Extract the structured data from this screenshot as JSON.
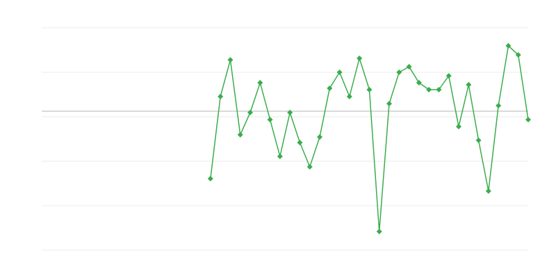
{
  "chart_data": {
    "type": "line",
    "x": [
      17,
      18,
      19,
      20,
      21,
      22,
      23,
      24,
      25,
      26,
      27,
      28,
      29,
      30,
      31,
      32,
      33,
      34,
      35,
      36,
      37,
      38,
      39,
      40,
      41,
      42,
      43,
      44,
      45,
      46,
      47,
      48,
      49
    ],
    "series": [
      {
        "color": "#3aad4c",
        "values": [
          -30.3,
          6.6,
          23.1,
          -10.6,
          -0.6,
          12.8,
          -3.8,
          -20.3,
          -0.6,
          -14.1,
          -25,
          -11.6,
          10.3,
          17.5,
          6.6,
          23.8,
          9.7,
          -54.1,
          3.4,
          17.5,
          20,
          12.8,
          9.7,
          9.7,
          15.9,
          -6.9,
          11.9,
          -13.1,
          -35.9,
          2.5,
          29.4,
          25.3,
          -3.8
        ]
      }
    ],
    "xlim": [
      0,
      49
    ],
    "ylim": [
      -62.5,
      37.5
    ],
    "yticks": [
      -62.5,
      -42.5,
      -22.5,
      -2.5,
      17.5,
      37.5
    ],
    "baseline": 0,
    "grid": true
  }
}
